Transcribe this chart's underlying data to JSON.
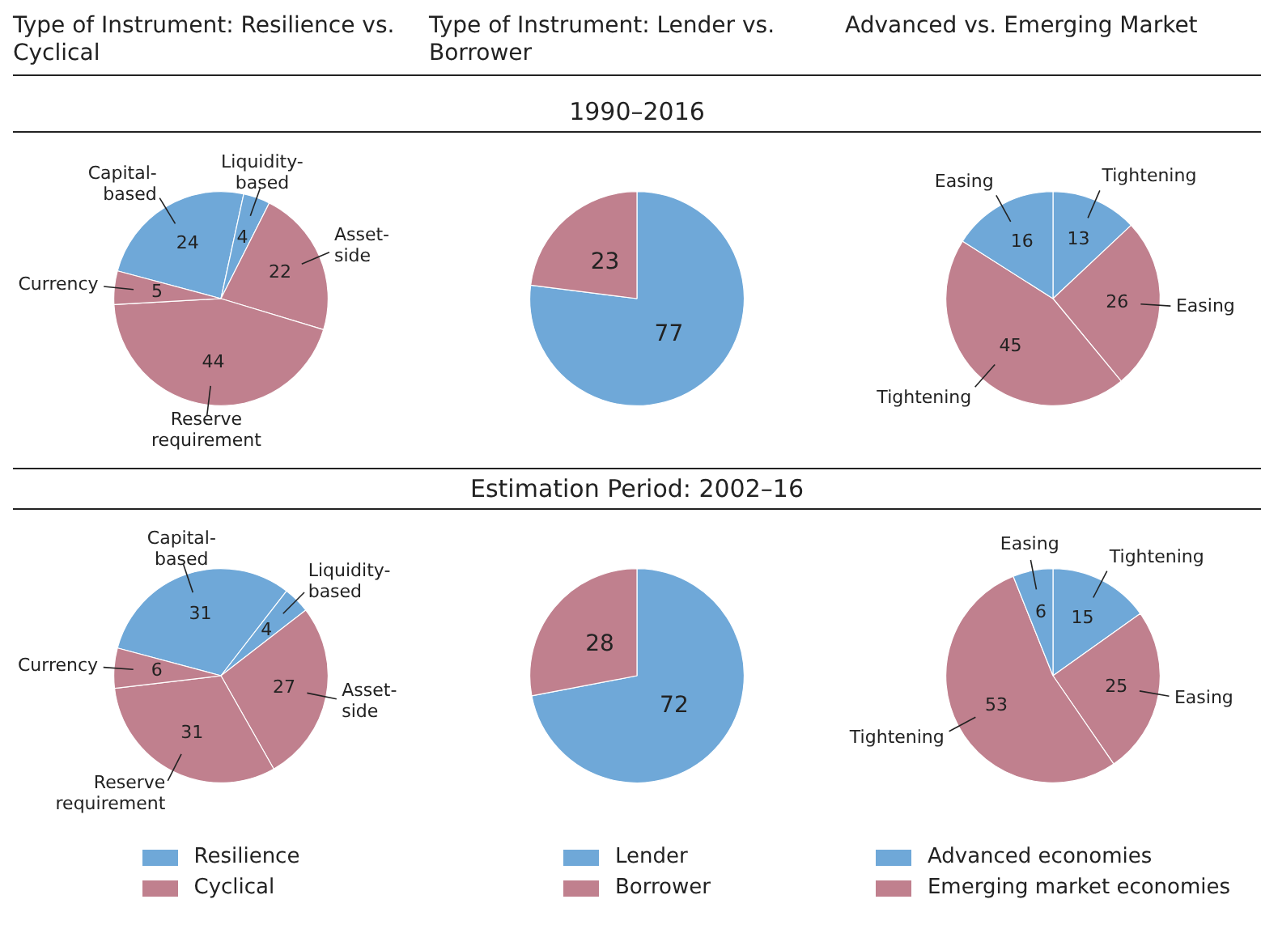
{
  "chart_data": [
    {
      "type": "pie",
      "title": "Type of Instrument: Resilience vs. Cyclical",
      "categories": [
        "Capital-based",
        "Liquidity-based",
        "Asset-side",
        "Reserve requirement",
        "Currency"
      ],
      "values": [
        24,
        4,
        22,
        44,
        5
      ],
      "colors": [
        "#6fa8d8",
        "#6fa8d8",
        "#c0808e",
        "#c0808e",
        "#c0808e"
      ],
      "data_labels": true
    },
    {
      "type": "pie",
      "title": "Type of Instrument: Lender vs. Borrower",
      "subtitle": "1990–2016",
      "categories": [
        null,
        null
      ],
      "values": [
        77,
        23
      ],
      "colors": [
        "#6fa8d8",
        "#c0808e"
      ],
      "data_labels": true
    },
    {
      "type": "pie",
      "title": "Advanced vs. Emerging Market",
      "categories": [
        "Tightening",
        "Easing",
        "Tightening",
        "Easing"
      ],
      "values": [
        13,
        26,
        45,
        16
      ],
      "colors": [
        "#6fa8d8",
        "#c0808e",
        "#c0808e",
        "#6fa8d8"
      ],
      "data_labels": true
    },
    {
      "type": "pie",
      "categories": [
        "Capital-based",
        "Liquidity-based",
        "Asset-side",
        "Reserve requirement",
        "Currency"
      ],
      "values": [
        31,
        4,
        27,
        31,
        6
      ],
      "colors": [
        "#6fa8d8",
        "#6fa8d8",
        "#c0808e",
        "#c0808e",
        "#c0808e"
      ],
      "data_labels": true,
      "annotations": [
        "Resilience",
        "Cyclical"
      ]
    },
    {
      "type": "pie",
      "subtitle": "Estimation Period: 2002–16",
      "categories": [
        "Lender",
        "Borrower"
      ],
      "values": [
        72,
        28
      ],
      "colors": [
        "#6fa8d8",
        "#c0808e"
      ],
      "data_labels": true,
      "legend": "bottom"
    },
    {
      "type": "pie",
      "categories": [
        "Tightening",
        "Easing",
        "Tightening",
        "Easing"
      ],
      "values": [
        15,
        25,
        53,
        6
      ],
      "colors": [
        "#6fa8d8",
        "#c0808e",
        "#c0808e",
        "#6fa8d8"
      ],
      "data_labels": true,
      "annotations": [
        "Advanced economies",
        "Emerging market economies"
      ]
    }
  ]
}
